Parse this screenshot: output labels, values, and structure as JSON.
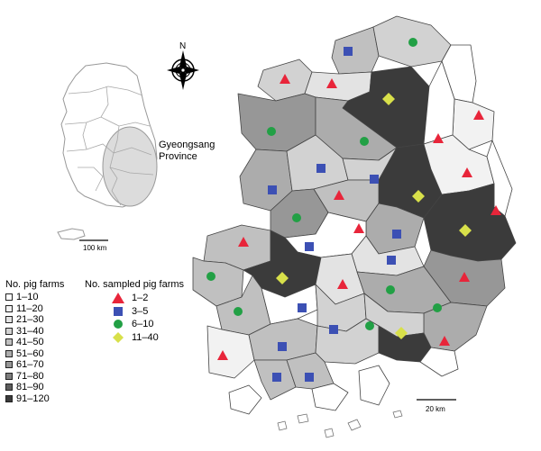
{
  "inset": {
    "region_label_line1": "Gyeongsang",
    "region_label_line2": "Province",
    "scale_label": "100 km"
  },
  "main_map": {
    "north_label": "N",
    "scale_label": "20 km"
  },
  "legend_farms": {
    "title": "No. pig farms",
    "classes": [
      {
        "label": "1–10",
        "color": "#ffffff"
      },
      {
        "label": "11–20",
        "color": "#f2f2f2"
      },
      {
        "label": "21–30",
        "color": "#e3e3e3"
      },
      {
        "label": "31–40",
        "color": "#d2d2d2"
      },
      {
        "label": "41–50",
        "color": "#c0c0c0"
      },
      {
        "label": "51–60",
        "color": "#acacac"
      },
      {
        "label": "61–70",
        "color": "#979797"
      },
      {
        "label": "71–80",
        "color": "#7d7d7d"
      },
      {
        "label": "81–90",
        "color": "#5e5e5e"
      },
      {
        "label": "91–120",
        "color": "#3b3b3b"
      }
    ]
  },
  "legend_samples": {
    "title": "No. sampled pig farms",
    "classes": [
      {
        "label": "1–2",
        "shape": "triangle",
        "color": "#e8253a"
      },
      {
        "label": "3–5",
        "shape": "square",
        "color": "#3c50b4"
      },
      {
        "label": "6–10",
        "shape": "circle",
        "color": "#22a045"
      },
      {
        "label": "11–40",
        "shape": "diamond",
        "color": "#d8e04a"
      }
    ]
  }
}
